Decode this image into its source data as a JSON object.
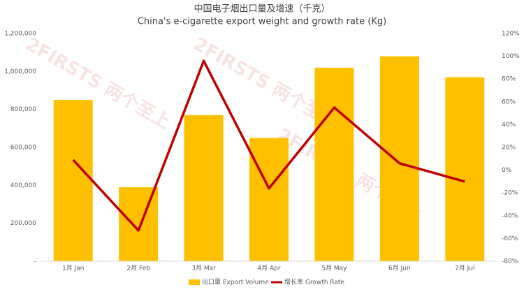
{
  "chart_data": {
    "type": "bar-line",
    "title": "中国电子烟出口量及增速（千克）",
    "subtitle": "China's e-cigarette export weight and growth rate (Kg)",
    "watermark": "2FIRSTS 两个至上",
    "categories": [
      "1月 Jan",
      "2月 Feb",
      "3月 Mar",
      "4月 Apr",
      "5月 May",
      "6月 Jun",
      "7月 Jul"
    ],
    "series": [
      {
        "name": "出口量 Export Volume",
        "type": "bar",
        "color": "#ffc000",
        "values": [
          850000,
          390000,
          770000,
          650000,
          1020000,
          1080000,
          970000
        ]
      },
      {
        "name": "增长率 Growth Rate",
        "type": "line",
        "axis": "y2",
        "color": "#c00000",
        "values": [
          9,
          -53,
          96,
          -16,
          55,
          6,
          -10
        ]
      }
    ],
    "ylim": [
      0,
      1200000
    ],
    "yticks": [
      {
        "value": 0,
        "label": "-"
      },
      {
        "value": 200000,
        "label": "200,000"
      },
      {
        "value": 400000,
        "label": "400,000"
      },
      {
        "value": 600000,
        "label": "600,000"
      },
      {
        "value": 800000,
        "label": "800,000"
      },
      {
        "value": 1000000,
        "label": "1,000,000"
      },
      {
        "value": 1200000,
        "label": "1,200,000"
      }
    ],
    "y2lim": [
      -80,
      120
    ],
    "y2ticks": [
      {
        "value": -80,
        "label": "-80%"
      },
      {
        "value": -60,
        "label": "-60%"
      },
      {
        "value": -40,
        "label": "-40%"
      },
      {
        "value": -20,
        "label": "-20%"
      },
      {
        "value": 0,
        "label": "0%"
      },
      {
        "value": 20,
        "label": "20%"
      },
      {
        "value": 40,
        "label": "40%"
      },
      {
        "value": 60,
        "label": "60%"
      },
      {
        "value": 80,
        "label": "80%"
      },
      {
        "value": 100,
        "label": "100%"
      },
      {
        "value": 120,
        "label": "120%"
      }
    ],
    "grid": false
  }
}
